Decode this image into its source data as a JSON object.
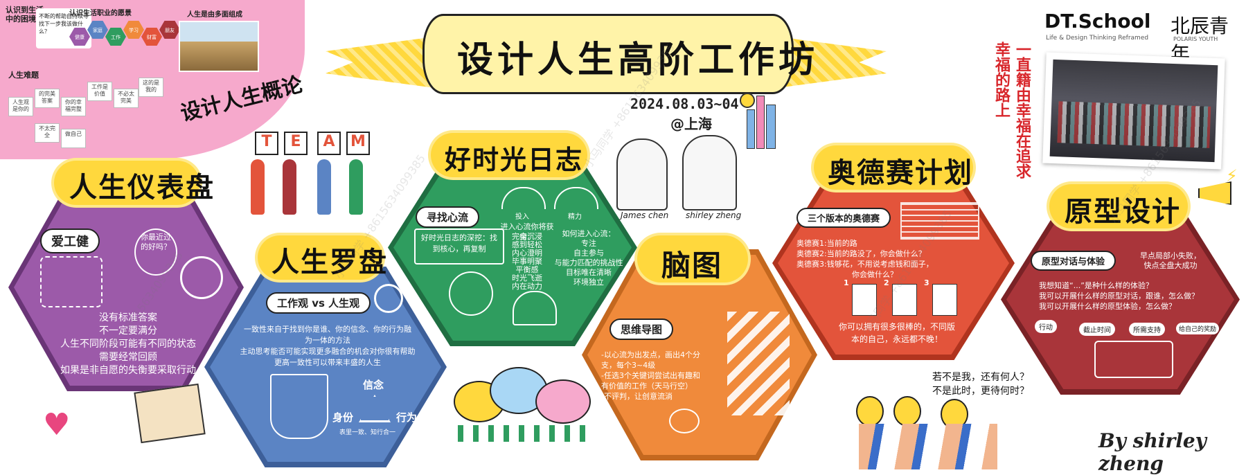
{
  "banner": {
    "title": "设计人生高阶工作坊"
  },
  "event": {
    "date": "2024.08.03~04",
    "location": "@上海"
  },
  "brand": {
    "logo": "DT.School",
    "tagline": "Life & Design Thinking Reframed",
    "partner": "北辰青年",
    "partner_en": "POLARIS YOUTH"
  },
  "slogan": "一直籍由幸福在追求幸福的路上",
  "overview": {
    "title": "设计人生概论",
    "q1": "认识到生活中的困境",
    "q1_text": "不断的帮助自持续寻找下一步我该做什么？",
    "q2": "认识生活职业的愿景",
    "q3": "人生是由多面组成",
    "q4": "人生难题",
    "cards": [
      "人生观是你的",
      "的完美答案",
      "你的幸福完整",
      "工作是价值",
      "不必太完美",
      "这的是我的",
      "不太完全",
      "做自己"
    ],
    "hex_labels": [
      "健康",
      "家庭",
      "工作",
      "学习",
      "财富",
      "朋友"
    ]
  },
  "team_letters": [
    "T",
    "E",
    "A",
    "M"
  ],
  "people": {
    "p1": "James chen",
    "p2": "shirley zheng"
  },
  "dashboard": {
    "title": "人生仪表盘",
    "sub": "爱工健",
    "bubble": "你最近过的好吗？",
    "lines": [
      "没有标准答案",
      "不一定要满分",
      "人生不同阶段可能有不同的状态",
      "需要经常回顾",
      "如果是非自愿的失衡要采取行动"
    ]
  },
  "compass": {
    "title": "人生罗盘",
    "sub": "工作观 vs 人生观",
    "lines": [
      "一致性来自于找到你是谁、你的信念、你的行为融",
      "为一体的方法",
      "主动思考能否可能实现更多融合的机会对你很有帮助",
      "更高一致性可以带来丰盛的人生"
    ],
    "triad": {
      "top": "信念",
      "left": "身份",
      "right": "行为",
      "note": "表里一致、知行合一"
    }
  },
  "journal": {
    "title": "好时光日志",
    "sub": "寻找心流",
    "box": "好时光日志的深挖：找到核心，再复制",
    "gauge1": "投入",
    "gauge2": "精力",
    "col1_head": "进入心流你将获得：",
    "col1": [
      "完全沉浸",
      "感到轻松",
      "内心澄明",
      "毕事明聚",
      "平衡感",
      "时光飞逝",
      "内在动力"
    ],
    "col2_head": "如何进入心流：",
    "col2": [
      "专注",
      "自主参与",
      "与能力匹配的挑战性",
      "目标唯在清晰",
      "环境独立"
    ]
  },
  "mindmap": {
    "title": "脑图",
    "sub": "思维导图",
    "lines": [
      "-以心流为出发点，画出4个分",
      "支，每个3~4级",
      "-任选3个关键词尝试出有趣和",
      "有价值的工作（天马行空）",
      "-不评判，让创意流淌"
    ]
  },
  "odyssey": {
    "title": "奥德赛计划",
    "sub": "三个版本的奥德赛",
    "lines": [
      "奥德赛1:当前的路",
      "奥德赛2:当前的路没了，你会做什么？",
      "奥德赛3:钱够花，不用说考虑钱和面子，",
      "你会做什么？"
    ],
    "sheets": [
      "1",
      "2",
      "3"
    ],
    "foot": [
      "你可以拥有很多很棒的，不同版",
      "本的自己，永远都不晚！"
    ]
  },
  "prototype": {
    "title": "原型设计",
    "sub": "原型对话与体验",
    "side": [
      "早点局部小失败，",
      "快点全盘大成功"
    ],
    "lines": [
      "我想知道“...”是种什么样的体验？",
      "我可以开展什么样的原型对话，跟谁，怎么做？",
      "我可以开展什么样的原型体验，怎么做？"
    ],
    "flow": [
      "行动",
      "截止时间",
      "所需支持",
      "给自己的奖励"
    ]
  },
  "quote": [
    "若不是我，还有何人？",
    "不是此时，更待何时？"
  ],
  "signature": "By shirley zheng",
  "watermarks": [
    "小马同学 +8615634099385"
  ],
  "colors": {
    "purple": "#9c5aa9",
    "blue": "#5b84c4",
    "green": "#2f9d5f",
    "orange": "#f08a3b",
    "red": "#e3543b",
    "darkred": "#a9353a",
    "yellow": "#ffd83d",
    "pink": "#f6a9cc"
  }
}
